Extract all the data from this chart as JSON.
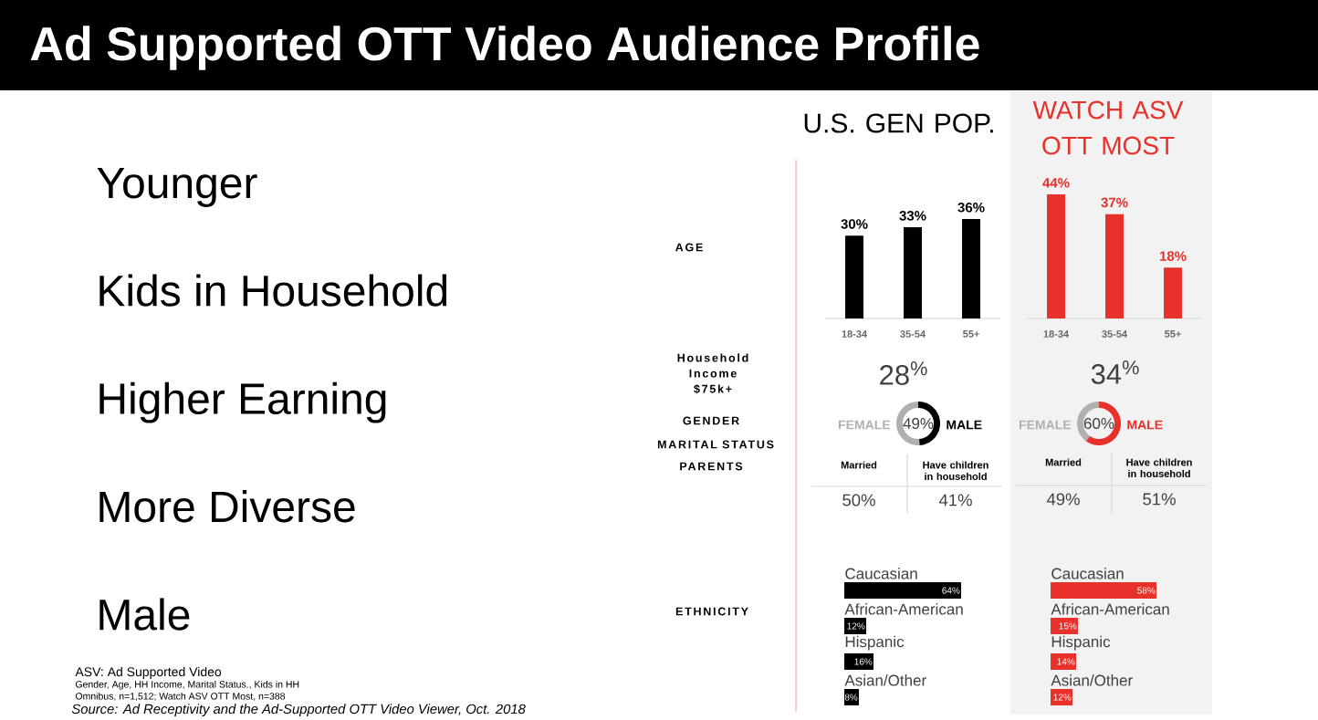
{
  "chart_data": [
    {
      "type": "other",
      "title": "Ad Supported OTT Video Audience Profile",
      "annotations": [
        "Younger",
        "Kids in Household",
        "Higher Earning",
        "More Diverse",
        "Male"
      ]
    },
    {
      "type": "other",
      "annotations": [
        "AGE",
        "Household Income $75k+",
        "GENDER",
        "MARITAL STATUS",
        "PARENTS",
        "ETHNICITY"
      ]
    },
    {
      "type": "bar",
      "title": "U.S. GEN POP.",
      "categories": [
        "18-34",
        "35-54",
        "55+"
      ],
      "values": [
        30,
        33,
        36
      ],
      "value_labels": [
        "30%",
        "33%",
        "36%"
      ],
      "color": "#000000"
    },
    {
      "type": "bar",
      "title": "WATCH ASV OTT MOST",
      "categories": [
        "18-34",
        "35-54",
        "55+"
      ],
      "values": [
        44,
        37,
        18
      ],
      "value_labels": [
        "44%",
        "37%",
        "18%"
      ],
      "color": "#e8312a"
    },
    {
      "type": "other",
      "annotations": [
        "28$^{%}$"
      ]
    },
    {
      "type": "other",
      "annotations": [
        "34$^{%}$"
      ]
    },
    {
      "type": "donut",
      "categories": [
        "FEMALE",
        "MALE"
      ],
      "values": [
        51,
        49
      ],
      "colors": [
        "#b0b0b0",
        "#000000"
      ],
      "annotations": [
        "49%"
      ]
    },
    {
      "type": "donut",
      "categories": [
        "FEMALE",
        "MALE"
      ],
      "values": [
        40,
        60
      ],
      "colors": [
        "#b0b0b0",
        "#e8312a"
      ],
      "annotations": [
        "60%"
      ]
    },
    {
      "type": "other",
      "categories": [
        "Married",
        "Have children in household"
      ],
      "annotations": [
        "50%",
        "41%"
      ]
    },
    {
      "type": "other",
      "categories": [
        "Married",
        "Have children in household"
      ],
      "annotations": [
        "49%",
        "51%"
      ]
    },
    {
      "type": "bar",
      "orientation": "horizontal",
      "categories": [
        "Caucasian",
        "African-American",
        "Hispanic",
        "Asian/Other"
      ],
      "values": [
        64,
        12,
        16,
        8
      ],
      "value_labels": [
        "64%",
        "12%",
        "16%",
        "8%"
      ],
      "color": "#000000"
    },
    {
      "type": "bar",
      "orientation": "horizontal",
      "categories": [
        "Caucasian",
        "African-American",
        "Hispanic",
        "Asian/Other"
      ],
      "values": [
        58,
        15,
        14,
        12
      ],
      "value_labels": [
        "58%",
        "15%",
        "14%",
        "12%"
      ],
      "color": "#e8312a"
    },
    {
      "type": "other",
      "annotations": [
        "ASV:  Ad Supported Video",
        "Gender, Age, HH Income, Marital Status., Kids in HH",
        "Omnibus, n=1,512; Watch ASV OTT Most, n=388",
        "Source:  Ad Receptivity and the Ad-Supported OTT Video Viewer, Oct. 2018"
      ]
    }
  ]
}
